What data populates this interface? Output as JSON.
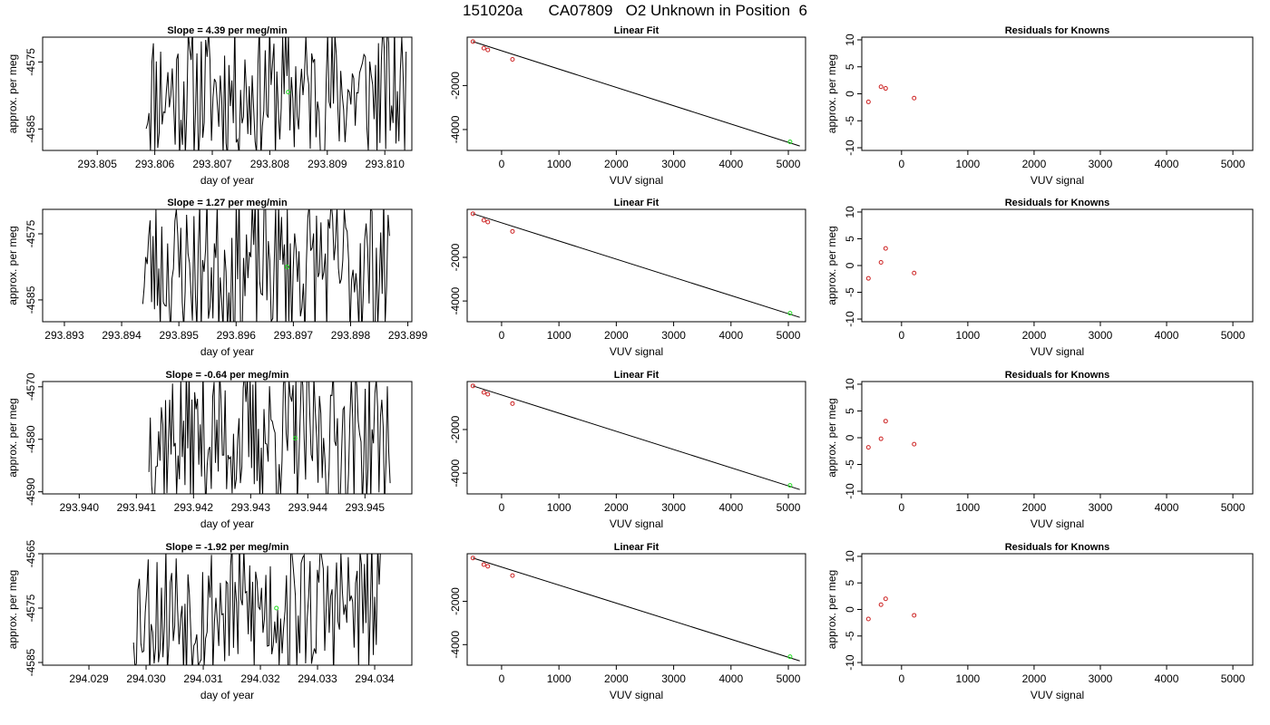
{
  "figure_title": "151020a      CA07809   O2 Unknown in Position  6",
  "chart_data": [
    {
      "type": "line",
      "panel": "drift",
      "row": 0,
      "title": "Slope =  4.39  per meg/min",
      "xlabel": "day of year",
      "ylabel": "approx. per meg",
      "xlim": [
        293.80405,
        293.81047
      ],
      "ylim": [
        -4588.2,
        -4571.3
      ],
      "xticks": [
        293.805,
        293.806,
        293.807,
        293.808,
        293.809,
        293.81
      ],
      "xtick_labels": [
        "293.805",
        "293.806",
        "293.807",
        "293.808",
        "293.809",
        "293.810"
      ],
      "yticks": [
        -4575,
        -4585
      ],
      "ytick_labels": [
        "-4575",
        "-4585"
      ],
      "noise": {
        "start": 293.80585,
        "end": 293.81037,
        "count": 180,
        "low": -4590,
        "high": -4569,
        "seed": 11
      },
      "highlight_points": [
        {
          "x": 293.80832,
          "y": -4579.5
        }
      ]
    },
    {
      "type": "scatter",
      "panel": "fit",
      "row": 0,
      "title": "Linear Fit",
      "xlabel": "VUV signal",
      "ylabel": "",
      "xlim": [
        -600,
        5300
      ],
      "ylim": [
        -4950,
        200
      ],
      "xticks": [
        0,
        1000,
        2000,
        3000,
        4000,
        5000
      ],
      "xtick_labels": [
        "0",
        "1000",
        "2000",
        "3000",
        "4000",
        "5000"
      ],
      "yticks": [
        -2000,
        -4000
      ],
      "ytick_labels": [
        "-2000",
        "-4000"
      ],
      "known_points": [
        {
          "x": -500,
          "y": 0
        },
        {
          "x": -310,
          "y": -300
        },
        {
          "x": -240,
          "y": -380
        },
        {
          "x": 190,
          "y": -810
        }
      ],
      "unknown_points": [
        {
          "x": 5030,
          "y": -4560
        }
      ],
      "fit_line": {
        "x": [
          -500,
          5200
        ],
        "y": [
          0,
          -4750
        ]
      }
    },
    {
      "type": "scatter",
      "panel": "residuals",
      "row": 0,
      "title": "Residuals for Knowns",
      "xlabel": "VUV signal",
      "ylabel": "approx. per meg",
      "xlim": [
        -600,
        5300
      ],
      "ylim": [
        -10.5,
        10.5
      ],
      "xticks": [
        0,
        1000,
        2000,
        3000,
        4000,
        5000
      ],
      "xtick_labels": [
        "0",
        "1000",
        "2000",
        "3000",
        "4000",
        "5000"
      ],
      "yticks": [
        -10,
        -5,
        0,
        5,
        10
      ],
      "ytick_labels": [
        "-10",
        "-5",
        "0",
        "5",
        "10"
      ],
      "points": [
        {
          "x": -500,
          "y": -1.5
        },
        {
          "x": -310,
          "y": 1.3
        },
        {
          "x": -240,
          "y": 1.0
        },
        {
          "x": 190,
          "y": -0.8
        }
      ]
    },
    {
      "type": "line",
      "panel": "drift",
      "row": 1,
      "title": "Slope =  1.27  per meg/min",
      "xlabel": "day of year",
      "ylabel": "approx. per meg",
      "xlim": [
        293.89262,
        293.89907
      ],
      "ylim": [
        -4588.3,
        -4571.3
      ],
      "xticks": [
        293.893,
        293.894,
        293.895,
        293.896,
        293.897,
        293.898,
        293.899
      ],
      "xtick_labels": [
        "293.893",
        "293.894",
        "293.895",
        "293.896",
        "293.897",
        "293.898",
        "293.899"
      ],
      "yticks": [
        -4575,
        -4585
      ],
      "ytick_labels": [
        "-4575",
        "-4585"
      ],
      "noise": {
        "start": 293.89437,
        "end": 293.89868,
        "count": 170,
        "low": -4591,
        "high": -4569,
        "seed": 23
      },
      "highlight_points": [
        {
          "x": 293.89689,
          "y": -4580.0
        }
      ]
    },
    {
      "type": "scatter",
      "panel": "fit",
      "row": 1,
      "title": "Linear Fit",
      "xlabel": "VUV signal",
      "ylabel": "",
      "xlim": [
        -600,
        5300
      ],
      "ylim": [
        -4950,
        200
      ],
      "xticks": [
        0,
        1000,
        2000,
        3000,
        4000,
        5000
      ],
      "xtick_labels": [
        "0",
        "1000",
        "2000",
        "3000",
        "4000",
        "5000"
      ],
      "yticks": [
        -2000,
        -4000
      ],
      "ytick_labels": [
        "-2000",
        "-4000"
      ],
      "known_points": [
        {
          "x": -500,
          "y": 0
        },
        {
          "x": -310,
          "y": -300
        },
        {
          "x": -240,
          "y": -380
        },
        {
          "x": 190,
          "y": -810
        }
      ],
      "unknown_points": [
        {
          "x": 5030,
          "y": -4560
        }
      ],
      "fit_line": {
        "x": [
          -500,
          5200
        ],
        "y": [
          0,
          -4750
        ]
      }
    },
    {
      "type": "scatter",
      "panel": "residuals",
      "row": 1,
      "title": "Residuals for Knowns",
      "xlabel": "VUV signal",
      "ylabel": "approx. per meg",
      "xlim": [
        -600,
        5300
      ],
      "ylim": [
        -10.5,
        10.5
      ],
      "xticks": [
        0,
        1000,
        2000,
        3000,
        4000,
        5000
      ],
      "xtick_labels": [
        "0",
        "1000",
        "2000",
        "3000",
        "4000",
        "5000"
      ],
      "yticks": [
        -10,
        -5,
        0,
        5,
        10
      ],
      "ytick_labels": [
        "-10",
        "-5",
        "0",
        "5",
        "10"
      ],
      "points": [
        {
          "x": -500,
          "y": -2.4
        },
        {
          "x": -310,
          "y": 0.6
        },
        {
          "x": -240,
          "y": 3.2
        },
        {
          "x": 190,
          "y": -1.4
        }
      ]
    },
    {
      "type": "line",
      "panel": "drift",
      "row": 2,
      "title": "Slope =  -0.64  per meg/min",
      "xlabel": "day of year",
      "ylabel": "approx. per meg",
      "xlim": [
        293.93936,
        293.94582
      ],
      "ylim": [
        -4590.4,
        -4569.0
      ],
      "xticks": [
        293.94,
        293.941,
        293.942,
        293.943,
        293.944,
        293.945
      ],
      "xtick_labels": [
        "293.940",
        "293.941",
        "293.942",
        "293.943",
        "293.944",
        "293.945"
      ],
      "yticks": [
        -4570,
        -4580,
        -4590
      ],
      "ytick_labels": [
        "-4570",
        "-4580",
        "-4590"
      ],
      "noise": {
        "start": 293.94122,
        "end": 293.94544,
        "count": 175,
        "low": -4593,
        "high": -4566,
        "seed": 37
      },
      "highlight_points": [
        {
          "x": 293.94378,
          "y": -4579.8
        }
      ]
    },
    {
      "type": "scatter",
      "panel": "fit",
      "row": 2,
      "title": "Linear Fit",
      "xlabel": "VUV signal",
      "ylabel": "",
      "xlim": [
        -600,
        5300
      ],
      "ylim": [
        -4950,
        200
      ],
      "xticks": [
        0,
        1000,
        2000,
        3000,
        4000,
        5000
      ],
      "xtick_labels": [
        "0",
        "1000",
        "2000",
        "3000",
        "4000",
        "5000"
      ],
      "yticks": [
        -2000,
        -4000
      ],
      "ytick_labels": [
        "-2000",
        "-4000"
      ],
      "known_points": [
        {
          "x": -500,
          "y": 0
        },
        {
          "x": -310,
          "y": -300
        },
        {
          "x": -240,
          "y": -380
        },
        {
          "x": 190,
          "y": -810
        }
      ],
      "unknown_points": [
        {
          "x": 5030,
          "y": -4560
        }
      ],
      "fit_line": {
        "x": [
          -500,
          5200
        ],
        "y": [
          0,
          -4750
        ]
      }
    },
    {
      "type": "scatter",
      "panel": "residuals",
      "row": 2,
      "title": "Residuals for Knowns",
      "xlabel": "VUV signal",
      "ylabel": "approx. per meg",
      "xlim": [
        -600,
        5300
      ],
      "ylim": [
        -10.5,
        10.5
      ],
      "xticks": [
        0,
        1000,
        2000,
        3000,
        4000,
        5000
      ],
      "xtick_labels": [
        "0",
        "1000",
        "2000",
        "3000",
        "4000",
        "5000"
      ],
      "yticks": [
        -10,
        -5,
        0,
        5,
        10
      ],
      "ytick_labels": [
        "-10",
        "-5",
        "0",
        "5",
        "10"
      ],
      "points": [
        {
          "x": -500,
          "y": -1.8
        },
        {
          "x": -310,
          "y": -0.2
        },
        {
          "x": -240,
          "y": 3.1
        },
        {
          "x": 190,
          "y": -1.2
        }
      ]
    },
    {
      "type": "line",
      "panel": "drift",
      "row": 3,
      "title": "Slope =  -1.92  per meg/min",
      "xlabel": "day of year",
      "ylabel": "approx. per meg",
      "xlim": [
        294.02819,
        294.03465
      ],
      "ylim": [
        -4585.5,
        -4565.0
      ],
      "xticks": [
        294.029,
        294.03,
        294.031,
        294.032,
        294.033,
        294.034
      ],
      "xtick_labels": [
        "294.029",
        "294.030",
        "294.031",
        "294.032",
        "294.033",
        "294.034"
      ],
      "yticks": [
        -4565,
        -4575,
        -4585
      ],
      "ytick_labels": [
        "-4565",
        "-4575",
        "-4585"
      ],
      "noise": {
        "start": 294.02978,
        "end": 294.03413,
        "count": 170,
        "low": -4588,
        "high": -4562,
        "seed": 53
      },
      "highlight_points": [
        {
          "x": 294.03228,
          "y": -4575.0
        }
      ]
    },
    {
      "type": "scatter",
      "panel": "fit",
      "row": 3,
      "title": "Linear Fit",
      "xlabel": "VUV signal",
      "ylabel": "",
      "xlim": [
        -600,
        5300
      ],
      "ylim": [
        -4950,
        200
      ],
      "xticks": [
        0,
        1000,
        2000,
        3000,
        4000,
        5000
      ],
      "xtick_labels": [
        "0",
        "1000",
        "2000",
        "3000",
        "4000",
        "5000"
      ],
      "yticks": [
        -2000,
        -4000
      ],
      "ytick_labels": [
        "-2000",
        "-4000"
      ],
      "known_points": [
        {
          "x": -500,
          "y": 0
        },
        {
          "x": -310,
          "y": -300
        },
        {
          "x": -240,
          "y": -380
        },
        {
          "x": 190,
          "y": -810
        }
      ],
      "unknown_points": [
        {
          "x": 5030,
          "y": -4560
        }
      ],
      "fit_line": {
        "x": [
          -500,
          5200
        ],
        "y": [
          0,
          -4750
        ]
      }
    },
    {
      "type": "scatter",
      "panel": "residuals",
      "row": 3,
      "title": "Residuals for Knowns",
      "xlabel": "VUV signal",
      "ylabel": "approx. per meg",
      "xlim": [
        -600,
        5300
      ],
      "ylim": [
        -10.5,
        10.5
      ],
      "xticks": [
        0,
        1000,
        2000,
        3000,
        4000,
        5000
      ],
      "xtick_labels": [
        "0",
        "1000",
        "2000",
        "3000",
        "4000",
        "5000"
      ],
      "yticks": [
        -10,
        -5,
        0,
        5,
        10
      ],
      "ytick_labels": [
        "-10",
        "-5",
        "0",
        "5",
        "10"
      ],
      "points": [
        {
          "x": -500,
          "y": -1.8
        },
        {
          "x": -310,
          "y": 0.9
        },
        {
          "x": -240,
          "y": 2.0
        },
        {
          "x": 190,
          "y": -1.1
        }
      ]
    }
  ],
  "colors": {
    "axis": "#000000",
    "series": "#000000",
    "known_point": "#cc2222",
    "unknown_point": "#22dd22",
    "background": "#ffffff"
  }
}
